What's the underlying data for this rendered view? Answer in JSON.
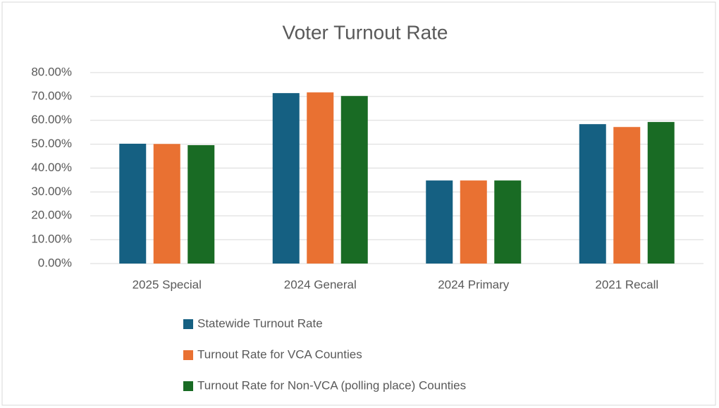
{
  "chart_data": {
    "type": "bar",
    "title": "Voter Turnout Rate",
    "categories": [
      "2025 Special",
      "2024 General",
      "2024 Primary",
      "2021 Recall"
    ],
    "series": [
      {
        "name": "Statewide Turnout Rate",
        "color": "#156082",
        "values": [
          50.2,
          71.4,
          34.8,
          58.4
        ]
      },
      {
        "name": "Turnout Rate for VCA Counties",
        "color": "#e97132",
        "values": [
          50.1,
          71.7,
          34.8,
          57.2
        ]
      },
      {
        "name": "Turnout Rate for Non-VCA (polling place) Counties",
        "color": "#196b24",
        "values": [
          49.6,
          70.2,
          34.8,
          59.3
        ]
      }
    ],
    "ylim": [
      0,
      80
    ],
    "yticks": [
      {
        "value": 0,
        "label": "0.00%"
      },
      {
        "value": 10,
        "label": "10.00%"
      },
      {
        "value": 20,
        "label": "20.00%"
      },
      {
        "value": 30,
        "label": "30.00%"
      },
      {
        "value": 40,
        "label": "40.00%"
      },
      {
        "value": 50,
        "label": "50.00%"
      },
      {
        "value": 60,
        "label": "60.00%"
      },
      {
        "value": 70,
        "label": "70.00%"
      },
      {
        "value": 80,
        "label": "80.00%"
      }
    ],
    "grid": true,
    "legend": "bottom"
  }
}
